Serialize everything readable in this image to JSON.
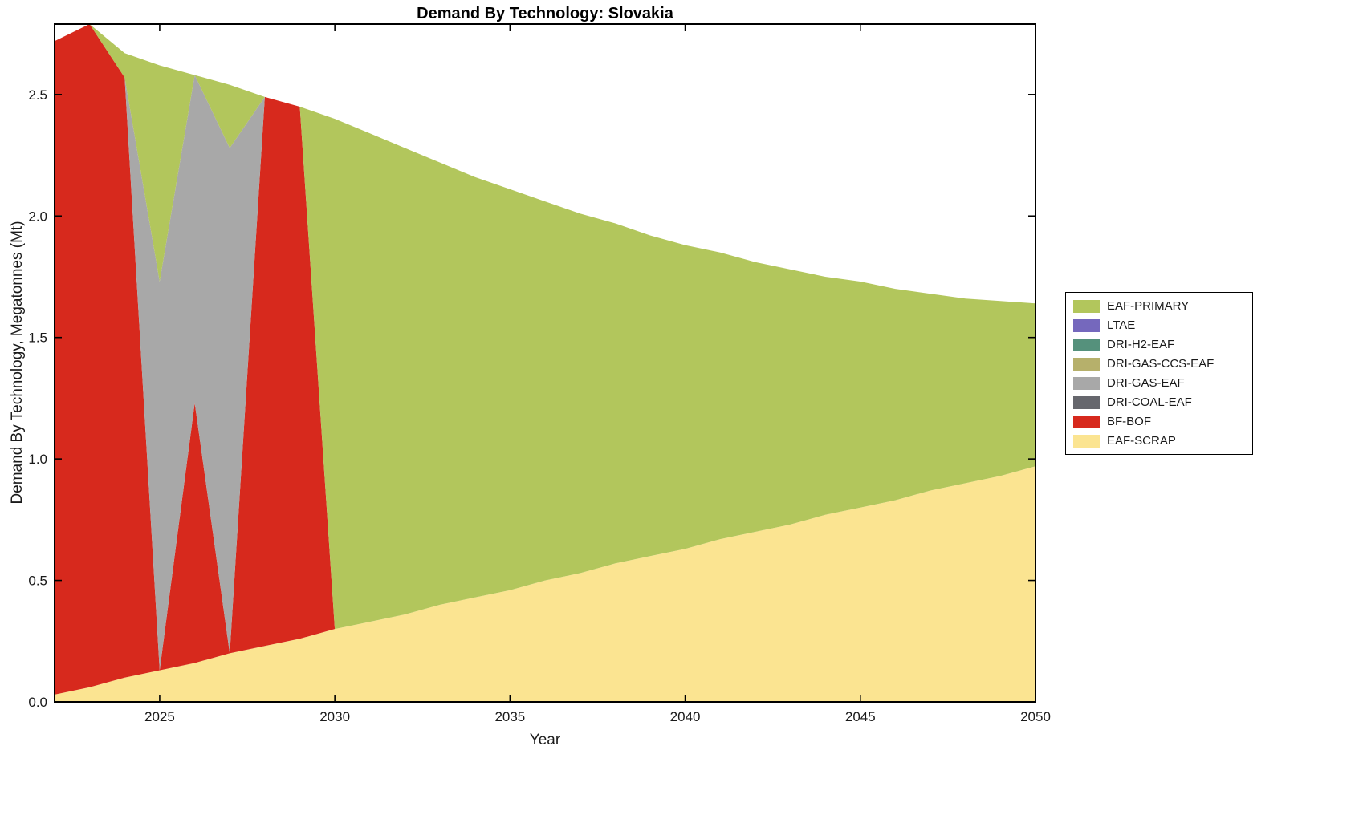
{
  "chart_data": {
    "type": "area",
    "stacked": true,
    "title": "Demand By Technology: Slovakia",
    "xlabel": "Year",
    "ylabel": "Demand By Technology, Megatonnes (Mt)",
    "xlim": [
      2022,
      2050
    ],
    "ylim": [
      0,
      2.79
    ],
    "xticks": [
      2025,
      2030,
      2035,
      2040,
      2045,
      2050
    ],
    "yticks": [
      0,
      0.5,
      1.0,
      1.5,
      2.0,
      2.5
    ],
    "ytick_labels": [
      "0.0",
      "0.5",
      "1.0",
      "1.5",
      "2.0",
      "2.5"
    ],
    "grid": false,
    "legend": {
      "position": "outside-right"
    },
    "x": [
      2022,
      2023,
      2024,
      2025,
      2026,
      2027,
      2028,
      2029,
      2030,
      2031,
      2032,
      2033,
      2034,
      2035,
      2036,
      2037,
      2038,
      2039,
      2040,
      2041,
      2042,
      2043,
      2044,
      2045,
      2046,
      2047,
      2048,
      2049,
      2050
    ],
    "series": [
      {
        "name": "EAF-SCRAP",
        "color": "#fbe491",
        "values": [
          0.03,
          0.06,
          0.1,
          0.13,
          0.16,
          0.2,
          0.23,
          0.26,
          0.3,
          0.33,
          0.36,
          0.4,
          0.43,
          0.46,
          0.5,
          0.53,
          0.57,
          0.6,
          0.63,
          0.67,
          0.7,
          0.73,
          0.77,
          0.8,
          0.83,
          0.87,
          0.9,
          0.93,
          0.97
        ]
      },
      {
        "name": "BF-BOF",
        "color": "#d7291d",
        "values": [
          2.69,
          2.73,
          2.47,
          0,
          1.07,
          0,
          2.26,
          2.19,
          0,
          0,
          0,
          0,
          0,
          0,
          0,
          0,
          0,
          0,
          0,
          0,
          0,
          0,
          0,
          0,
          0,
          0,
          0,
          0,
          0
        ]
      },
      {
        "name": "DRI-COAL-EAF",
        "color": "#66676d",
        "values": [
          0,
          0,
          0,
          0,
          0,
          0,
          0,
          0,
          0,
          0,
          0,
          0,
          0,
          0,
          0,
          0,
          0,
          0,
          0,
          0,
          0,
          0,
          0,
          0,
          0,
          0,
          0,
          0,
          0
        ]
      },
      {
        "name": "DRI-GAS-EAF",
        "color": "#a8a8a8",
        "values": [
          0,
          0,
          0,
          1.6,
          1.35,
          2.08,
          0,
          0,
          0,
          0,
          0,
          0,
          0,
          0,
          0,
          0,
          0,
          0,
          0,
          0,
          0,
          0,
          0,
          0,
          0,
          0,
          0,
          0,
          0
        ]
      },
      {
        "name": "DRI-GAS-CCS-EAF",
        "color": "#b6b06b",
        "values": [
          0,
          0,
          0,
          0,
          0,
          0,
          0,
          0,
          0,
          0,
          0,
          0,
          0,
          0,
          0,
          0,
          0,
          0,
          0,
          0,
          0,
          0,
          0,
          0,
          0,
          0,
          0,
          0,
          0
        ]
      },
      {
        "name": "DRI-H2-EAF",
        "color": "#55917c",
        "values": [
          0,
          0,
          0,
          0,
          0,
          0,
          0,
          0,
          0,
          0,
          0,
          0,
          0,
          0,
          0,
          0,
          0,
          0,
          0,
          0,
          0,
          0,
          0,
          0,
          0,
          0,
          0,
          0,
          0
        ]
      },
      {
        "name": "LTAE",
        "color": "#7568bd",
        "values": [
          0,
          0,
          0,
          0,
          0,
          0,
          0,
          0,
          0,
          0,
          0,
          0,
          0,
          0,
          0,
          0,
          0,
          0,
          0,
          0,
          0,
          0,
          0,
          0,
          0,
          0,
          0,
          0,
          0
        ]
      },
      {
        "name": "EAF-PRIMARY",
        "color": "#b2c65c",
        "values": [
          0,
          0,
          0.1,
          0.89,
          0,
          0.26,
          0,
          0,
          2.1,
          2.01,
          1.92,
          1.82,
          1.73,
          1.65,
          1.56,
          1.48,
          1.4,
          1.32,
          1.25,
          1.18,
          1.11,
          1.05,
          0.98,
          0.93,
          0.87,
          0.81,
          0.76,
          0.72,
          0.67
        ]
      }
    ],
    "legend_order_top_to_bottom": [
      "EAF-PRIMARY",
      "LTAE",
      "DRI-H2-EAF",
      "DRI-GAS-CCS-EAF",
      "DRI-GAS-EAF",
      "DRI-COAL-EAF",
      "BF-BOF",
      "EAF-SCRAP"
    ]
  }
}
